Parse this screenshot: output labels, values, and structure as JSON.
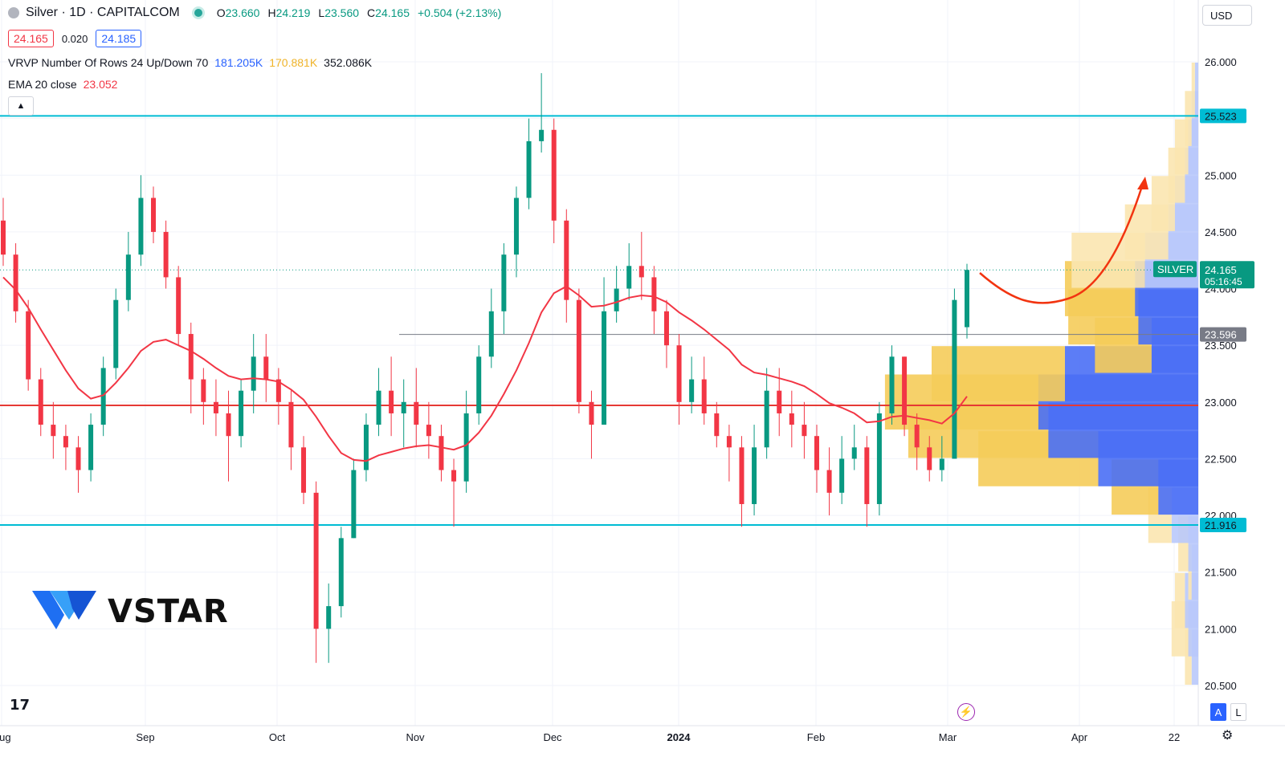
{
  "header": {
    "symbol": "Silver · 1D · CAPITALCOM",
    "ohlc": {
      "o_label": "O",
      "o": "23.660",
      "h_label": "H",
      "h": "24.219",
      "l_label": "L",
      "l": "23.560",
      "c_label": "C",
      "c": "24.165",
      "change": "+0.504 (+2.13%)"
    }
  },
  "quote": {
    "sell": "24.165",
    "spread": "0.020",
    "buy": "24.185"
  },
  "indicators": {
    "vrvp": {
      "label": "VRVP Number Of Rows 24 Up/Down 70",
      "up": "181.205K",
      "down": "170.881K",
      "total": "352.086K"
    },
    "ema": {
      "label": "EMA 20 close",
      "value": "23.052"
    }
  },
  "currency": "USD",
  "brand": {
    "name": "VSTAR",
    "tv_mark": "17"
  },
  "toolbar": {
    "auto": "A",
    "log": "L"
  },
  "colors": {
    "up": "#089981",
    "down": "#f23645",
    "ema": "#f23645",
    "levels": "#00bcd4",
    "vp_up": "#5b7cfa",
    "vp_down": "#f6d26b",
    "arrow": "#f23410"
  },
  "chart_data": {
    "type": "candlestick",
    "symbol": "SILVER",
    "ylim": [
      20.5,
      26.0
    ],
    "yticks": [
      "26.000",
      "25.500",
      "25.000",
      "24.500",
      "24.000",
      "23.500",
      "23.000",
      "22.500",
      "22.000",
      "21.500",
      "21.000",
      "20.500"
    ],
    "xticks": [
      "Aug",
      "Sep",
      "Oct",
      "Nov",
      "Dec",
      "2024",
      "Feb",
      "Mar",
      "Apr",
      "22"
    ],
    "price_labels": {
      "resistance": "25.523",
      "support": "21.916",
      "pivot": "23.596",
      "last_name": "SILVER",
      "last_price": "24.165",
      "countdown": "05:16:45"
    },
    "levels": {
      "resistance": 25.523,
      "support": 21.916,
      "pivot": 23.596,
      "red_line": 22.97,
      "last": 24.165
    },
    "candles": [
      [
        24.6,
        24.3,
        24.8,
        24.2
      ],
      [
        24.3,
        23.8,
        24.4,
        23.7
      ],
      [
        23.8,
        23.2,
        23.9,
        23.1
      ],
      [
        23.2,
        22.8,
        23.3,
        22.7
      ],
      [
        22.8,
        22.7,
        23.0,
        22.5
      ],
      [
        22.7,
        22.6,
        22.8,
        22.4
      ],
      [
        22.6,
        22.4,
        22.7,
        22.2
      ],
      [
        22.4,
        22.8,
        22.9,
        22.3
      ],
      [
        22.8,
        23.3,
        23.4,
        22.7
      ],
      [
        23.3,
        23.9,
        24.0,
        23.2
      ],
      [
        23.9,
        24.3,
        24.5,
        23.8
      ],
      [
        24.3,
        24.8,
        25.0,
        24.2
      ],
      [
        24.8,
        24.5,
        24.9,
        24.4
      ],
      [
        24.5,
        24.1,
        24.6,
        24.0
      ],
      [
        24.1,
        23.6,
        24.2,
        23.5
      ],
      [
        23.6,
        23.2,
        23.7,
        22.9
      ],
      [
        23.2,
        23.0,
        23.3,
        22.8
      ],
      [
        23.0,
        22.9,
        23.2,
        22.7
      ],
      [
        22.9,
        22.7,
        23.1,
        22.3
      ],
      [
        22.7,
        23.1,
        23.2,
        22.6
      ],
      [
        23.1,
        23.4,
        23.6,
        22.9
      ],
      [
        23.4,
        23.2,
        23.6,
        23.0
      ],
      [
        23.2,
        23.0,
        23.3,
        22.8
      ],
      [
        23.0,
        22.6,
        23.1,
        22.4
      ],
      [
        22.6,
        22.2,
        22.7,
        22.1
      ],
      [
        22.2,
        21.0,
        22.3,
        20.7
      ],
      [
        21.0,
        21.2,
        21.4,
        20.7
      ],
      [
        21.2,
        21.8,
        21.9,
        21.1
      ],
      [
        21.8,
        22.4,
        22.5,
        21.8
      ],
      [
        22.4,
        22.8,
        22.9,
        22.3
      ],
      [
        22.8,
        23.1,
        23.3,
        22.7
      ],
      [
        23.1,
        22.9,
        23.4,
        22.7
      ],
      [
        22.9,
        23.0,
        23.2,
        22.6
      ],
      [
        23.0,
        22.8,
        23.3,
        22.6
      ],
      [
        22.8,
        22.7,
        23.0,
        22.5
      ],
      [
        22.7,
        22.4,
        22.8,
        22.3
      ],
      [
        22.4,
        22.3,
        22.5,
        21.9
      ],
      [
        22.3,
        22.9,
        23.1,
        22.2
      ],
      [
        22.9,
        23.4,
        23.5,
        22.8
      ],
      [
        23.4,
        23.8,
        24.0,
        23.3
      ],
      [
        23.8,
        24.3,
        24.4,
        23.6
      ],
      [
        24.3,
        24.8,
        24.9,
        24.1
      ],
      [
        24.8,
        25.3,
        25.5,
        24.7
      ],
      [
        25.3,
        25.4,
        25.9,
        25.2
      ],
      [
        25.4,
        24.6,
        25.5,
        24.4
      ],
      [
        24.6,
        23.9,
        24.7,
        23.7
      ],
      [
        23.9,
        23.0,
        24.0,
        22.9
      ],
      [
        23.0,
        22.8,
        23.1,
        22.5
      ],
      [
        22.8,
        23.8,
        24.1,
        22.8
      ],
      [
        23.8,
        24.0,
        24.2,
        23.7
      ],
      [
        24.0,
        24.2,
        24.4,
        23.9
      ],
      [
        24.2,
        24.1,
        24.5,
        23.9
      ],
      [
        24.1,
        23.8,
        24.2,
        23.6
      ],
      [
        23.8,
        23.5,
        23.9,
        23.3
      ],
      [
        23.5,
        23.0,
        23.6,
        22.8
      ],
      [
        23.0,
        23.2,
        23.4,
        22.9
      ],
      [
        23.2,
        22.9,
        23.4,
        22.8
      ],
      [
        22.9,
        22.7,
        23.0,
        22.6
      ],
      [
        22.7,
        22.6,
        22.8,
        22.3
      ],
      [
        22.6,
        22.1,
        22.7,
        21.9
      ],
      [
        22.1,
        22.6,
        22.8,
        22.0
      ],
      [
        22.6,
        23.1,
        23.3,
        22.5
      ],
      [
        23.1,
        22.9,
        23.3,
        22.7
      ],
      [
        22.9,
        22.8,
        23.1,
        22.6
      ],
      [
        22.8,
        22.7,
        23.0,
        22.5
      ],
      [
        22.7,
        22.4,
        22.8,
        22.2
      ],
      [
        22.4,
        22.2,
        22.6,
        22.0
      ],
      [
        22.2,
        22.5,
        22.7,
        22.1
      ],
      [
        22.5,
        22.6,
        22.8,
        22.4
      ],
      [
        22.6,
        22.1,
        22.7,
        21.9
      ],
      [
        22.1,
        22.9,
        23.0,
        22.0
      ],
      [
        22.9,
        23.4,
        23.5,
        22.8
      ],
      [
        23.4,
        22.8,
        23.4,
        22.7
      ],
      [
        22.8,
        22.6,
        22.9,
        22.4
      ],
      [
        22.6,
        22.4,
        22.7,
        22.3
      ],
      [
        22.4,
        22.5,
        22.7,
        22.3
      ],
      [
        22.5,
        23.9,
        24.0,
        22.5
      ],
      [
        23.66,
        24.165,
        24.219,
        23.56
      ]
    ],
    "ema20": [
      24.1,
      23.99,
      23.83,
      23.64,
      23.46,
      23.28,
      23.12,
      23.03,
      23.06,
      23.17,
      23.3,
      23.45,
      23.53,
      23.55,
      23.5,
      23.45,
      23.38,
      23.3,
      23.23,
      23.2,
      23.21,
      23.2,
      23.18,
      23.11,
      23.02,
      22.87,
      22.7,
      22.55,
      22.49,
      22.48,
      22.53,
      22.56,
      22.59,
      22.61,
      22.62,
      22.6,
      22.58,
      22.62,
      22.73,
      22.88,
      23.07,
      23.28,
      23.52,
      23.79,
      23.96,
      24.02,
      23.94,
      23.84,
      23.85,
      23.88,
      23.92,
      23.94,
      23.93,
      23.88,
      23.79,
      23.72,
      23.64,
      23.55,
      23.46,
      23.33,
      23.26,
      23.24,
      23.21,
      23.18,
      23.14,
      23.07,
      22.99,
      22.95,
      22.9,
      22.82,
      22.83,
      22.87,
      22.88,
      22.86,
      22.84,
      22.81,
      22.9,
      23.05
    ],
    "volume_profile": [
      [
        20.75,
        0.02,
        0.02
      ],
      [
        21.0,
        0.03,
        0.05
      ],
      [
        21.25,
        0.04,
        0.03
      ],
      [
        21.5,
        0.02,
        0.01
      ],
      [
        21.75,
        0.03,
        0.03
      ],
      [
        22.0,
        0.08,
        0.07
      ],
      [
        22.25,
        0.12,
        0.14
      ],
      [
        22.5,
        0.3,
        0.36
      ],
      [
        22.75,
        0.45,
        0.42
      ],
      [
        23.0,
        0.48,
        0.46
      ],
      [
        23.25,
        0.4,
        0.4
      ],
      [
        23.5,
        0.14,
        0.17
      ],
      [
        23.75,
        0.18,
        0.21
      ],
      [
        24.0,
        0.19,
        0.21
      ],
      [
        24.25,
        0.16,
        0.22
      ],
      [
        24.5,
        0.09,
        0.13
      ],
      [
        24.75,
        0.07,
        0.07
      ],
      [
        25.0,
        0.04,
        0.05
      ],
      [
        25.25,
        0.03,
        0.04
      ],
      [
        25.5,
        0.02,
        0.02
      ],
      [
        25.75,
        0.01,
        0.01
      ]
    ]
  }
}
